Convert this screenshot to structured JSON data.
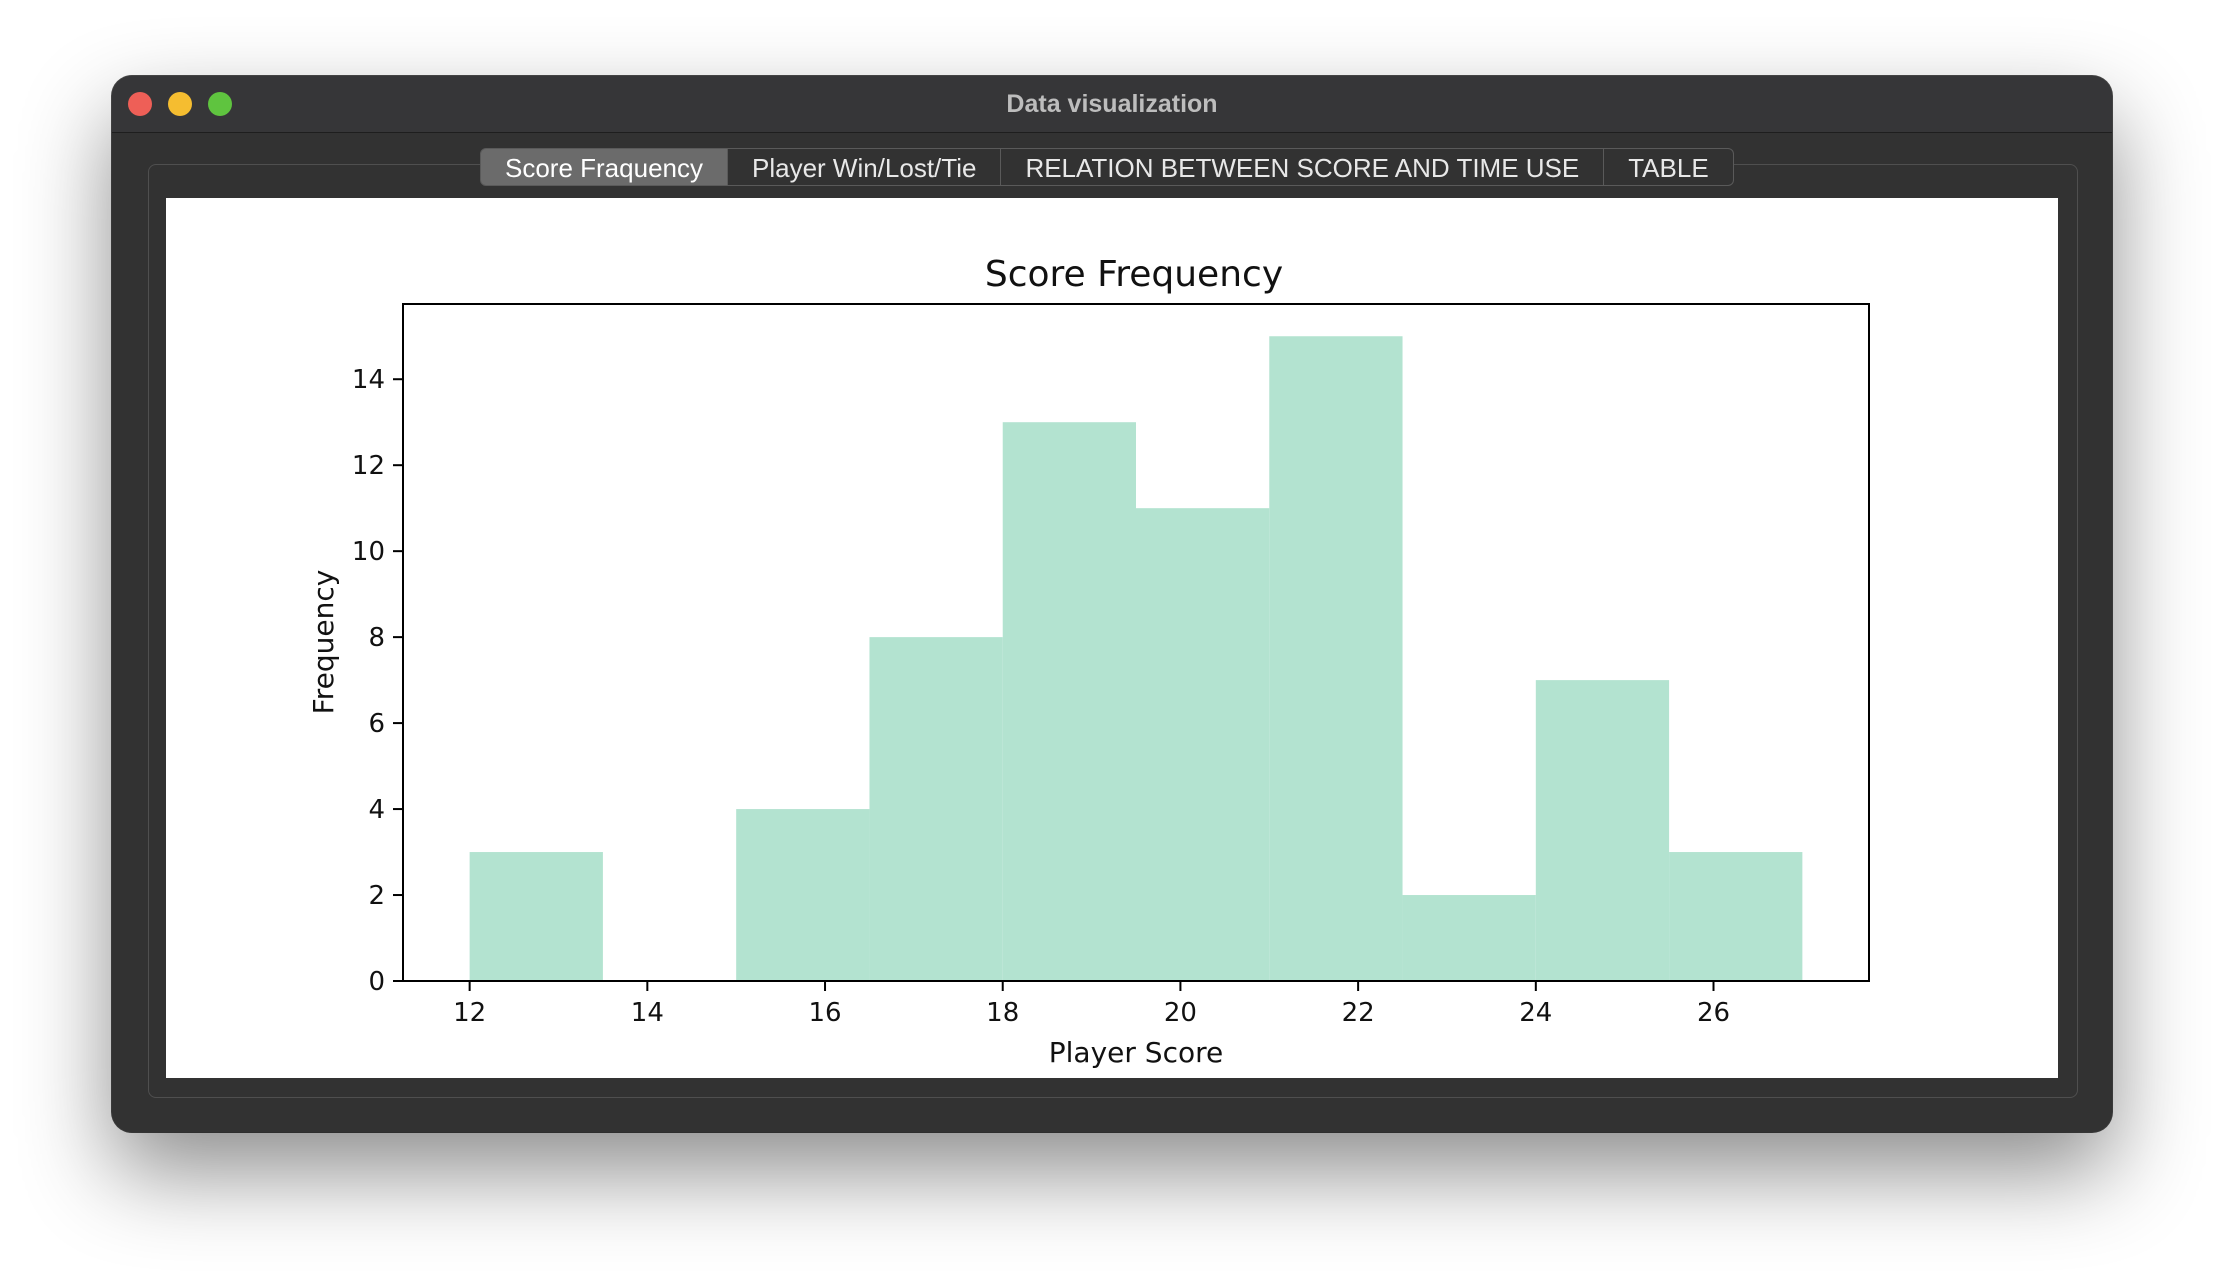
{
  "window": {
    "title": "Data visualization"
  },
  "tabs": [
    {
      "label": "Score Fraquency",
      "active": true
    },
    {
      "label": "Player Win/Lost/Tie",
      "active": false
    },
    {
      "label": "RELATION BETWEEN SCORE AND TIME USE",
      "active": false
    },
    {
      "label": "TABLE",
      "active": false
    }
  ],
  "colors": {
    "bar": "#b3e3d0",
    "close": "#ee5f57",
    "minimize": "#f5bd30",
    "maximize": "#5fc43f"
  },
  "chart_data": {
    "type": "bar",
    "title": "Score Frequency",
    "xlabel": "Player Score",
    "ylabel": "Frequency",
    "bin_edges": [
      12,
      13.5,
      15,
      16.5,
      18,
      19.5,
      21,
      22.5,
      24,
      25.5,
      27
    ],
    "values": [
      3,
      0,
      4,
      8,
      13,
      11,
      15,
      2,
      7,
      3
    ],
    "xlim": [
      11.25,
      27.75
    ],
    "ylim": [
      0,
      15.75
    ],
    "xticks": [
      12,
      14,
      16,
      18,
      20,
      22,
      24,
      26
    ],
    "yticks": [
      0,
      2,
      4,
      6,
      8,
      10,
      12,
      14
    ],
    "grid": false
  }
}
